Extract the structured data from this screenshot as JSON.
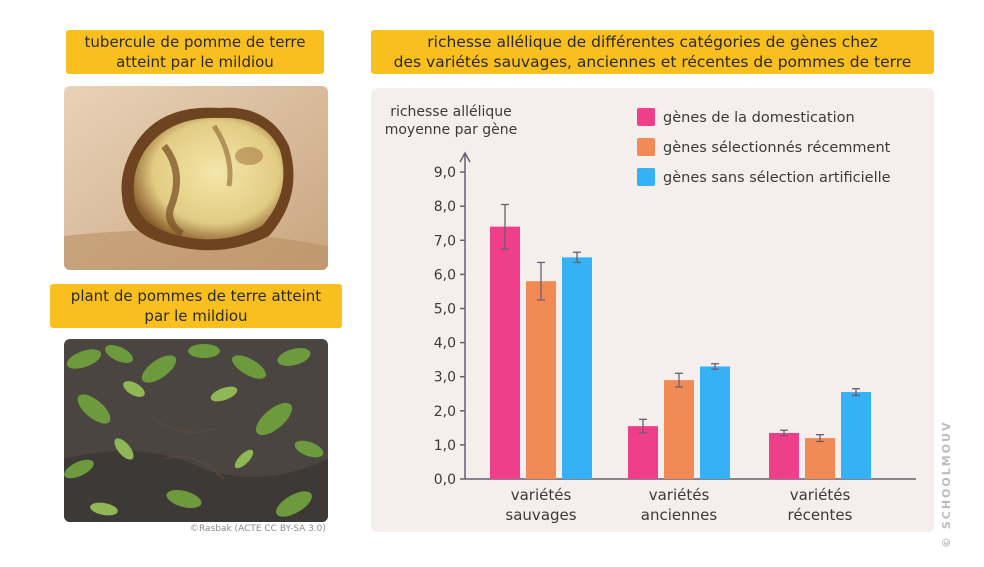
{
  "tags": {
    "tuber": [
      "tubercule de pomme de terre",
      "atteint par le mildiou"
    ],
    "plant": [
      "plant de pommes de terre atteint",
      "par le mildiou"
    ],
    "chart": [
      "richesse allélique de différentes catégories de gènes chez",
      "des variétés sauvages, anciennes et récentes de pommes de terre"
    ]
  },
  "credit": "©Rasbak (ACTE CC BY-SA 3.0)",
  "watermark": "© SCHOOLMOUV",
  "colors": {
    "tag_bg": "#f8bf1e",
    "panel_bg": "#f4efec",
    "domestication": "#ef3f8a",
    "recent": "#f28a55",
    "none": "#35b2f6",
    "axis": "#6c5d72"
  },
  "chart_data": {
    "type": "bar",
    "ylabel": [
      "richesse allélique",
      "moyenne par gène"
    ],
    "categories": [
      [
        "variétés",
        "sauvages"
      ],
      [
        "variétés",
        "anciennes"
      ],
      [
        "variétés",
        "récentes"
      ]
    ],
    "ylim": [
      0,
      9
    ],
    "yticks": [
      "0,0",
      "1,0",
      "2,0",
      "3,0",
      "4,0",
      "5,0",
      "6,0",
      "7,0",
      "8,0",
      "9,0"
    ],
    "legend_position": "top-right",
    "series": [
      {
        "name": "gènes de la domestication",
        "color": "#ef3f8a",
        "values": [
          7.4,
          1.55,
          1.35
        ],
        "errors": [
          0.65,
          0.2,
          0.08
        ]
      },
      {
        "name": "gènes sélectionnés récemment",
        "color": "#f28a55",
        "values": [
          5.8,
          2.9,
          1.2
        ],
        "errors": [
          0.55,
          0.2,
          0.1
        ]
      },
      {
        "name": "gènes sans sélection artificielle",
        "color": "#35b2f6",
        "values": [
          6.5,
          3.3,
          2.55
        ],
        "errors": [
          0.15,
          0.08,
          0.1
        ]
      }
    ]
  }
}
